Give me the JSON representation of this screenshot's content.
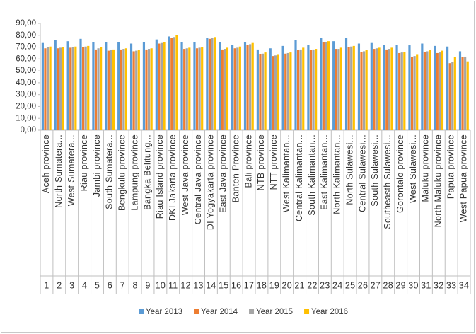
{
  "chart_data": {
    "type": "bar",
    "categories": [
      "Aceh province",
      "North Sumatera...",
      "West Sumatera...",
      "Riau province",
      "Jambi province",
      "South Sumatera...",
      "Bengkulu province",
      "Lampung province",
      "Bangka Belitung...",
      "Riau Island province",
      "DKI Jakarta province",
      "West Java province",
      "Central Java province",
      "DI Yogyakarta province",
      "East Java province",
      "Banten Province",
      "Bali province",
      "NTB province",
      "NTT province",
      "West Kalimantan...",
      "Central Kalimantan...",
      "South Kalimantan...",
      "East Kalimantan...",
      "North Kalimantan...",
      "North Sulawesi...",
      "Central Sulawesi...",
      "South Sulawesi...",
      "Southeasth Sulawesi...",
      "Gorontalo province",
      "West Sulawesi...",
      "Maluku province",
      "North Maluku province",
      "Papua province",
      "West Papua province"
    ],
    "category_numbers": [
      1,
      2,
      3,
      4,
      5,
      6,
      7,
      8,
      9,
      10,
      11,
      12,
      13,
      14,
      15,
      16,
      17,
      18,
      19,
      20,
      21,
      22,
      23,
      24,
      25,
      26,
      27,
      28,
      29,
      30,
      31,
      32,
      33,
      34
    ],
    "series": [
      {
        "name": "Year 2013",
        "color": "#5b9bd5",
        "values": [
          73.5,
          76,
          75,
          77,
          74.5,
          74.5,
          74.5,
          73,
          74,
          76.5,
          79,
          74,
          74.5,
          77.5,
          74,
          72,
          74,
          68,
          69,
          71,
          76,
          72,
          77.5,
          75,
          77.5,
          73,
          73.5,
          72,
          72,
          71.5,
          73,
          71,
          70.5,
          66.5
        ]
      },
      {
        "name": "Year 2014",
        "color": "#ed7d31",
        "values": [
          69,
          69,
          69.5,
          70,
          68,
          67,
          68,
          66.5,
          68,
          73,
          78,
          68.5,
          69,
          77,
          68,
          69,
          72,
          64,
          62.5,
          64.5,
          67.5,
          67.5,
          74,
          68.5,
          70,
          66,
          68.5,
          68,
          65,
          62,
          66,
          65,
          56.5,
          61.5
        ]
      },
      {
        "name": "Year 2015",
        "color": "#a5a5a5",
        "values": [
          70,
          69.5,
          70,
          70.5,
          69,
          67.5,
          68.5,
          67,
          68.5,
          73.5,
          78.5,
          69,
          69.5,
          77.5,
          68.5,
          69.5,
          72.5,
          64.5,
          63,
          65,
          68,
          68,
          74.5,
          68.5,
          70.5,
          66.5,
          69,
          68.5,
          65.5,
          62.5,
          66.5,
          65.5,
          57.5,
          62
        ]
      },
      {
        "name": "Year 2016",
        "color": "#ffc000",
        "values": [
          70.5,
          70,
          70.5,
          71,
          70,
          68,
          69,
          67.5,
          69,
          74,
          80,
          69.5,
          70,
          78.5,
          69.5,
          70.5,
          73.5,
          65.5,
          63.5,
          65.5,
          69.5,
          68.5,
          75,
          69.5,
          71,
          67.5,
          69.5,
          69.5,
          66,
          63.5,
          67.5,
          67,
          62,
          58
        ]
      }
    ],
    "ylim": [
      0,
      90
    ],
    "yticks": [
      {
        "value": 0,
        "label": "0,00"
      },
      {
        "value": 10,
        "label": "10,00"
      },
      {
        "value": 20,
        "label": "20,00"
      },
      {
        "value": 30,
        "label": "30,00"
      },
      {
        "value": 40,
        "label": "40,00"
      },
      {
        "value": 50,
        "label": "50,00"
      },
      {
        "value": 60,
        "label": "60,00"
      },
      {
        "value": 70,
        "label": "70,00"
      },
      {
        "value": 80,
        "label": "80,00"
      },
      {
        "value": 90,
        "label": "90,00"
      }
    ],
    "grid": false,
    "legend": "bottom"
  }
}
